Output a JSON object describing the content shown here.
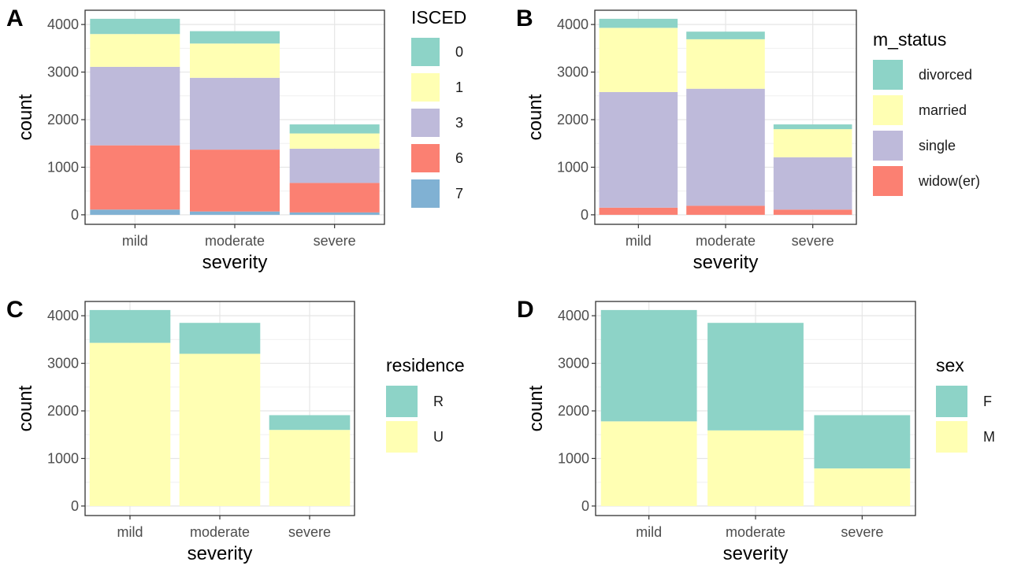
{
  "chart_data": [
    {
      "panel": "A",
      "type": "bar",
      "stacked": true,
      "xlabel": "severity",
      "ylabel": "count",
      "categories": [
        "mild",
        "moderate",
        "severe"
      ],
      "yticks": [
        0,
        1000,
        2000,
        3000,
        4000
      ],
      "ylim": [
        -200,
        4300
      ],
      "grid": true,
      "legend": {
        "title": "ISCED",
        "placement": "right"
      },
      "series": [
        {
          "name": "7",
          "color": "#80b1d3",
          "values": [
            110,
            70,
            50
          ]
        },
        {
          "name": "6",
          "color": "#fb8072",
          "values": [
            1350,
            1300,
            620
          ]
        },
        {
          "name": "3",
          "color": "#bebada",
          "values": [
            1650,
            1510,
            720
          ]
        },
        {
          "name": "1",
          "color": "#ffffb3",
          "values": [
            690,
            720,
            320
          ]
        },
        {
          "name": "0",
          "color": "#8dd3c7",
          "values": [
            320,
            260,
            190
          ]
        }
      ]
    },
    {
      "panel": "B",
      "type": "bar",
      "stacked": true,
      "xlabel": "severity",
      "ylabel": "count",
      "categories": [
        "mild",
        "moderate",
        "severe"
      ],
      "yticks": [
        0,
        1000,
        2000,
        3000,
        4000
      ],
      "ylim": [
        -200,
        4300
      ],
      "grid": true,
      "legend": {
        "title": "m_status",
        "placement": "right"
      },
      "series": [
        {
          "name": "widow(er)",
          "color": "#fb8072",
          "values": [
            150,
            190,
            110
          ]
        },
        {
          "name": "single",
          "color": "#bebada",
          "values": [
            2430,
            2460,
            1100
          ]
        },
        {
          "name": "married",
          "color": "#ffffb3",
          "values": [
            1350,
            1040,
            590
          ]
        },
        {
          "name": "divorced",
          "color": "#8dd3c7",
          "values": [
            190,
            160,
            100
          ]
        }
      ]
    },
    {
      "panel": "C",
      "type": "bar",
      "stacked": true,
      "xlabel": "severity",
      "ylabel": "count",
      "categories": [
        "mild",
        "moderate",
        "severe"
      ],
      "yticks": [
        0,
        1000,
        2000,
        3000,
        4000
      ],
      "ylim": [
        -200,
        4300
      ],
      "grid": true,
      "legend": {
        "title": "residence",
        "placement": "right"
      },
      "series": [
        {
          "name": "U",
          "color": "#ffffb3",
          "values": [
            3430,
            3200,
            1600
          ]
        },
        {
          "name": "R",
          "color": "#8dd3c7",
          "values": [
            690,
            650,
            310
          ]
        }
      ]
    },
    {
      "panel": "D",
      "type": "bar",
      "stacked": true,
      "xlabel": "severity",
      "ylabel": "count",
      "categories": [
        "mild",
        "moderate",
        "severe"
      ],
      "yticks": [
        0,
        1000,
        2000,
        3000,
        4000
      ],
      "ylim": [
        -200,
        4300
      ],
      "grid": true,
      "legend": {
        "title": "sex",
        "placement": "right"
      },
      "series": [
        {
          "name": "M",
          "color": "#ffffb3",
          "values": [
            1780,
            1590,
            790
          ]
        },
        {
          "name": "F",
          "color": "#8dd3c7",
          "values": [
            2340,
            2260,
            1120
          ]
        }
      ]
    }
  ]
}
